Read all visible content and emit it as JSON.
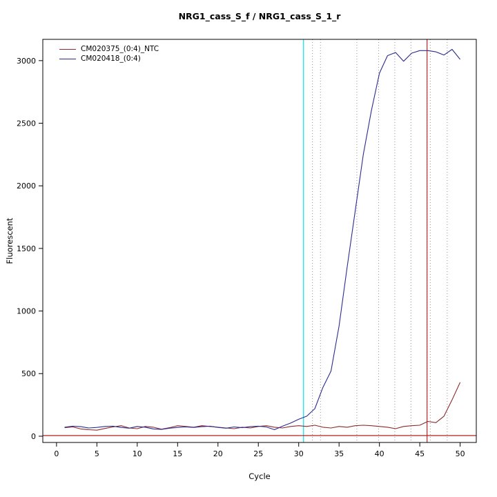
{
  "chart_data": {
    "type": "line",
    "title": "NRG1_cass_S_f / NRG1_cass_S_1_r",
    "xlabel": "Cycle",
    "ylabel": "Fluorescent",
    "xlim": [
      -1.7,
      52.0
    ],
    "ylim": [
      -50,
      3170
    ],
    "x_ticks": [
      0,
      5,
      10,
      15,
      20,
      25,
      30,
      35,
      40,
      45,
      50
    ],
    "y_ticks": [
      0,
      500,
      1000,
      1500,
      2000,
      2500,
      3000
    ],
    "grid": "dotted-vertical-markers",
    "legend_position": "top-left",
    "x": [
      1,
      2,
      3,
      4,
      5,
      6,
      7,
      8,
      9,
      10,
      11,
      12,
      13,
      14,
      15,
      16,
      17,
      18,
      19,
      20,
      21,
      22,
      23,
      24,
      25,
      26,
      27,
      28,
      29,
      30,
      31,
      32,
      33,
      34,
      35,
      36,
      37,
      38,
      39,
      40,
      41,
      42,
      43,
      44,
      45,
      46,
      47,
      48,
      49,
      50
    ],
    "series": [
      {
        "name": "CM020375_(0:4)_NTC",
        "color": "#8b2a2a",
        "values": [
          68,
          74,
          58,
          52,
          48,
          62,
          74,
          84,
          66,
          60,
          78,
          72,
          56,
          68,
          84,
          78,
          72,
          84,
          78,
          72,
          66,
          60,
          72,
          66,
          78,
          84,
          72,
          66,
          78,
          84,
          78,
          88,
          72,
          66,
          78,
          72,
          84,
          88,
          84,
          78,
          72,
          60,
          78,
          84,
          88,
          118,
          108,
          160,
          290,
          430
        ]
      },
      {
        "name": "CM020418_(0:4)",
        "color": "#2b2b8f",
        "values": [
          72,
          80,
          76,
          66,
          70,
          78,
          80,
          70,
          64,
          78,
          72,
          58,
          54,
          64,
          70,
          74,
          70,
          76,
          80,
          70,
          64,
          74,
          68,
          76,
          80,
          74,
          52,
          80,
          105,
          135,
          160,
          220,
          390,
          520,
          880,
          1350,
          1800,
          2250,
          2600,
          2900,
          3040,
          3065,
          2995,
          3060,
          3080,
          3080,
          3070,
          3045,
          3090,
          3010
        ]
      }
    ],
    "threshold_line": {
      "y": 5,
      "color": "#b22222"
    },
    "vlines": [
      {
        "x": 30.6,
        "color": "#00e5ee"
      },
      {
        "x": 45.9,
        "color": "#b22222"
      }
    ],
    "dotted_vlines": {
      "x": [
        31.7,
        32.7,
        37.2,
        39.9,
        41.9,
        43.9,
        46.3,
        48.4
      ],
      "color": "#8f8f8f"
    }
  }
}
